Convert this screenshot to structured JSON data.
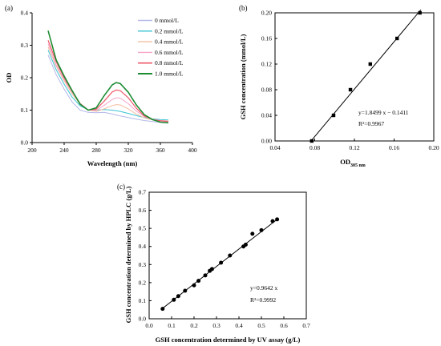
{
  "chart_data": [
    {
      "panel": "(a)",
      "type": "line",
      "xlabel": "Wavelength (nm)",
      "ylabel": "OD",
      "xlim": [
        200,
        400
      ],
      "ylim": [
        0,
        0.4
      ],
      "xticks": [
        200,
        240,
        280,
        320,
        360,
        400
      ],
      "yticks": [
        0.0,
        0.1,
        0.2,
        0.3,
        0.4
      ],
      "x": [
        220,
        230,
        240,
        250,
        260,
        270,
        280,
        290,
        300,
        305,
        310,
        320,
        330,
        340,
        350,
        360,
        370
      ],
      "series": [
        {
          "name": "0 mmol/L",
          "color": "#b4b8e8",
          "width": 1.0,
          "values": [
            0.27,
            0.21,
            0.165,
            0.125,
            0.1,
            0.093,
            0.092,
            0.093,
            0.088,
            0.085,
            0.082,
            0.077,
            0.072,
            0.068,
            0.065,
            0.062,
            0.06
          ]
        },
        {
          "name": "0.2 mmol/L",
          "color": "#3cc4d6",
          "width": 1.0,
          "values": [
            0.285,
            0.225,
            0.18,
            0.14,
            0.113,
            0.101,
            0.1,
            0.102,
            0.1,
            0.098,
            0.096,
            0.09,
            0.083,
            0.077,
            0.073,
            0.071,
            0.07
          ]
        },
        {
          "name": "0.4 mmol/L",
          "color": "#f2bfa0",
          "width": 1.0,
          "values": [
            0.295,
            0.235,
            0.19,
            0.15,
            0.118,
            0.101,
            0.096,
            0.104,
            0.114,
            0.117,
            0.116,
            0.104,
            0.088,
            0.076,
            0.07,
            0.068,
            0.067
          ]
        },
        {
          "name": "0.6 mmol/L",
          "color": "#f7a4c8",
          "width": 1.0,
          "values": [
            0.305,
            0.24,
            0.195,
            0.155,
            0.12,
            0.101,
            0.099,
            0.115,
            0.133,
            0.138,
            0.137,
            0.12,
            0.097,
            0.08,
            0.072,
            0.068,
            0.066
          ]
        },
        {
          "name": "0.8 mmol/L",
          "color": "#ef5a6a",
          "width": 1.2,
          "values": [
            0.315,
            0.25,
            0.2,
            0.158,
            0.12,
            0.1,
            0.103,
            0.128,
            0.156,
            0.162,
            0.16,
            0.138,
            0.106,
            0.082,
            0.071,
            0.067,
            0.065
          ]
        },
        {
          "name": "1.0 mmol/L",
          "color": "#1e8c33",
          "width": 1.6,
          "values": [
            0.345,
            0.255,
            0.205,
            0.16,
            0.118,
            0.1,
            0.107,
            0.145,
            0.178,
            0.185,
            0.182,
            0.155,
            0.116,
            0.086,
            0.071,
            0.063,
            0.061
          ]
        }
      ]
    },
    {
      "panel": "(b)",
      "type": "scatter",
      "xlabel": "OD",
      "xlabel_sub": "305 nm",
      "ylabel": "GSH concentration (mmol/L)",
      "xlim": [
        0.04,
        0.2
      ],
      "ylim": [
        0,
        0.2
      ],
      "xticks": [
        "0.04",
        "0.08",
        "0.12",
        "0.16",
        "0.20"
      ],
      "yticks": [
        "0.00",
        "0.04",
        "0.08",
        "0.12",
        "0.16",
        "0.20"
      ],
      "x": [
        0.077,
        0.099,
        0.116,
        0.136,
        0.163,
        0.186
      ],
      "y": [
        0.0,
        0.04,
        0.08,
        0.12,
        0.16,
        0.2
      ],
      "fit": {
        "slope": 1.8499,
        "intercept": -0.1411,
        "x_range": [
          0.076,
          0.187
        ]
      },
      "equation": "y=1.8499 x − 0.1411",
      "r2": "R²=0.9967"
    },
    {
      "panel": "(c)",
      "type": "scatter",
      "xlabel": "GSH concentration determined by UV assay (g/L)",
      "ylabel": "GSH concentration determined by HPLC (g/L)",
      "xlim": [
        0,
        0.7
      ],
      "ylim": [
        0,
        0.7
      ],
      "xticks": [
        "0.0",
        "0.1",
        "0.2",
        "0.3",
        "0.4",
        "0.5",
        "0.6",
        "0.7"
      ],
      "yticks": [
        "0.0",
        "0.1",
        "0.2",
        "0.3",
        "0.4",
        "0.5",
        "0.6",
        "0.7"
      ],
      "x": [
        0.06,
        0.11,
        0.13,
        0.16,
        0.2,
        0.22,
        0.25,
        0.27,
        0.28,
        0.32,
        0.36,
        0.42,
        0.43,
        0.46,
        0.5,
        0.55,
        0.57
      ],
      "y": [
        0.055,
        0.105,
        0.125,
        0.155,
        0.185,
        0.21,
        0.24,
        0.265,
        0.275,
        0.31,
        0.35,
        0.4,
        0.41,
        0.47,
        0.49,
        0.54,
        0.55
      ],
      "fit": {
        "slope": 0.9642,
        "intercept": 0,
        "x_range": [
          0.06,
          0.575
        ]
      },
      "equation": "y=0.9642 x",
      "r2": "R²=0.9992"
    }
  ]
}
